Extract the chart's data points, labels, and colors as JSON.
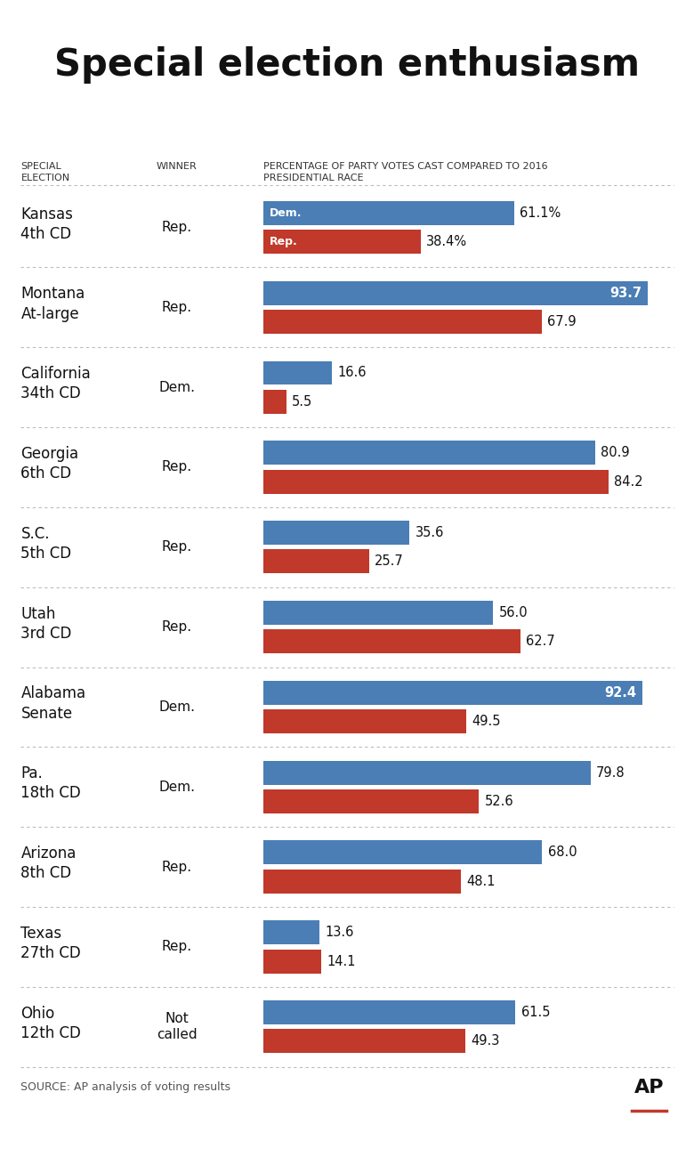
{
  "title": "Special election enthusiasm",
  "col_header_election": "SPECIAL\nELECTION",
  "col_header_winner": "WINNER",
  "col_header_pct": "PERCENTAGE OF PARTY VOTES CAST COMPARED TO 2016\nPRESIDENTIAL RACE",
  "source": "SOURCE: AP analysis of voting results",
  "elections": [
    {
      "name": "Kansas\n4th CD",
      "winner": "Rep.",
      "dem": 61.1,
      "rep": 38.4,
      "dem_label": "61.1%",
      "rep_label": "38.4%",
      "dem_inside": false,
      "rep_inside": false,
      "show_party_inside": true
    },
    {
      "name": "Montana\nAt-large",
      "winner": "Rep.",
      "dem": 93.7,
      "rep": 67.9,
      "dem_label": "93.7",
      "rep_label": "67.9",
      "dem_inside": true,
      "rep_inside": false,
      "show_party_inside": false
    },
    {
      "name": "California\n34th CD",
      "winner": "Dem.",
      "dem": 16.6,
      "rep": 5.5,
      "dem_label": "16.6",
      "rep_label": "5.5",
      "dem_inside": false,
      "rep_inside": false,
      "show_party_inside": false
    },
    {
      "name": "Georgia\n6th CD",
      "winner": "Rep.",
      "dem": 80.9,
      "rep": 84.2,
      "dem_label": "80.9",
      "rep_label": "84.2",
      "dem_inside": false,
      "rep_inside": false,
      "show_party_inside": false
    },
    {
      "name": "S.C.\n5th CD",
      "winner": "Rep.",
      "dem": 35.6,
      "rep": 25.7,
      "dem_label": "35.6",
      "rep_label": "25.7",
      "dem_inside": false,
      "rep_inside": false,
      "show_party_inside": false
    },
    {
      "name": "Utah\n3rd CD",
      "winner": "Rep.",
      "dem": 56.0,
      "rep": 62.7,
      "dem_label": "56.0",
      "rep_label": "62.7",
      "dem_inside": false,
      "rep_inside": false,
      "show_party_inside": false
    },
    {
      "name": "Alabama\nSenate",
      "winner": "Dem.",
      "dem": 92.4,
      "rep": 49.5,
      "dem_label": "92.4",
      "rep_label": "49.5",
      "dem_inside": true,
      "rep_inside": false,
      "show_party_inside": false
    },
    {
      "name": "Pa.\n18th CD",
      "winner": "Dem.",
      "dem": 79.8,
      "rep": 52.6,
      "dem_label": "79.8",
      "rep_label": "52.6",
      "dem_inside": false,
      "rep_inside": false,
      "show_party_inside": false
    },
    {
      "name": "Arizona\n8th CD",
      "winner": "Rep.",
      "dem": 68.0,
      "rep": 48.1,
      "dem_label": "68.0",
      "rep_label": "48.1",
      "dem_inside": false,
      "rep_inside": false,
      "show_party_inside": false
    },
    {
      "name": "Texas\n27th CD",
      "winner": "Rep.",
      "dem": 13.6,
      "rep": 14.1,
      "dem_label": "13.6",
      "rep_label": "14.1",
      "dem_inside": false,
      "rep_inside": false,
      "show_party_inside": false
    },
    {
      "name": "Ohio\n12th CD",
      "winner": "Not\ncalled",
      "dem": 61.5,
      "rep": 49.3,
      "dem_label": "61.5",
      "rep_label": "49.3",
      "dem_inside": false,
      "rep_inside": false,
      "show_party_inside": false
    }
  ],
  "dem_color": "#4a7eb5",
  "rep_color": "#c0392b",
  "bg_color": "#ffffff",
  "bar_max": 100,
  "title_fontsize": 30,
  "value_fontsize": 10.5,
  "header_fontsize": 8,
  "source_fontsize": 9,
  "winner_fontsize": 11,
  "election_fontsize": 12
}
